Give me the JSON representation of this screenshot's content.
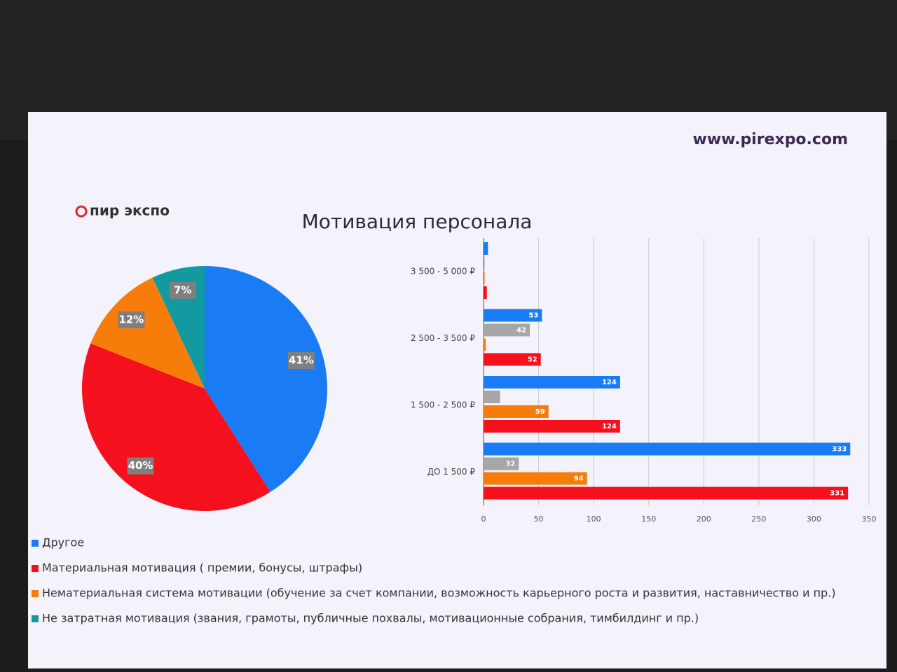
{
  "logo": "пир экспо",
  "url": "www.pirexpo.com",
  "chart_data": [
    {
      "type": "pie",
      "title": "Мотивация персонала",
      "categories": [
        "Другое",
        "Материальная мотивация ( премии, бонусы, штрафы)",
        "Нематериальная система мотивации (обучение за счет компании, возможность карьерного роста и развития, наставничество и пр.)",
        "Не затратная мотивация (звания, грамоты, публичные похвалы, мотивационные собрания, тимбилдинг и пр.)"
      ],
      "values": [
        41,
        40,
        12,
        7
      ],
      "value_labels": [
        "41%",
        "40%",
        "12%",
        "7%"
      ],
      "colors": [
        "#1a7cf5",
        "#f5101e",
        "#f77d0a",
        "#129aa0"
      ]
    },
    {
      "type": "hbar",
      "categories": [
        "ДО 1 500 ₽",
        "1 500 - 2 500 ₽",
        "2 500 - 3 500 ₽",
        "3 500 - 5 000 ₽"
      ],
      "series": [
        {
          "color": "#1a7cf5",
          "values": [
            333,
            124,
            53,
            4
          ]
        },
        {
          "color": "#a6a6a6",
          "values": [
            32,
            15,
            42,
            1
          ]
        },
        {
          "color": "#f77d0a",
          "values": [
            94,
            59,
            2,
            1
          ]
        },
        {
          "color": "#f5101e",
          "values": [
            331,
            124,
            52,
            3
          ]
        }
      ],
      "xlim": [
        0,
        350
      ],
      "xticks": [
        0,
        50,
        100,
        150,
        200,
        250,
        300,
        350
      ],
      "grid": true
    }
  ]
}
